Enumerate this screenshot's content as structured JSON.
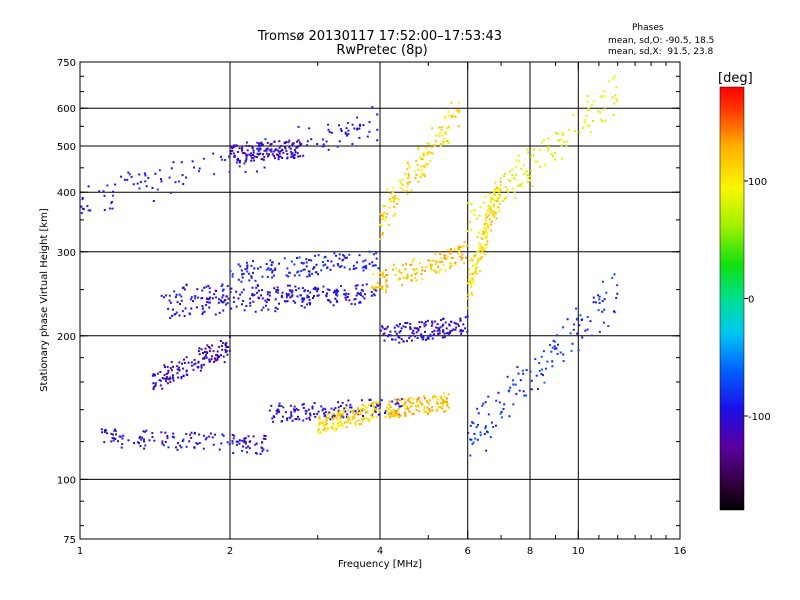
{
  "chart_data": {
    "type": "scatter",
    "title": "Tromsø 20130117 17:52:00–17:53:43",
    "subtitle": "RwPretec (8p)",
    "phases_header": "Phases",
    "phases_line_o": "mean, sd,O: -90.5, 18.5",
    "phases_line_x": "mean, sd,X:  91.5, 23.8",
    "xlabel": "Frequency [MHz]",
    "ylabel": "Stationary phase Virtual Height [km]",
    "x_scale": "log",
    "y_scale": "log",
    "xlim": [
      1,
      16
    ],
    "ylim": [
      75,
      750
    ],
    "x_ticks": [
      1,
      2,
      4,
      6,
      8,
      10,
      16
    ],
    "x_tick_labels": [
      "1",
      "2",
      "4",
      "6",
      "8",
      "10",
      "16"
    ],
    "x_gridlines": [
      2,
      4,
      6,
      8,
      10
    ],
    "y_ticks": [
      75,
      100,
      200,
      300,
      400,
      500,
      600,
      750
    ],
    "y_tick_labels": [
      "75",
      "100",
      "200",
      "300",
      "400",
      "500",
      "600",
      "750"
    ],
    "y_gridlines": [
      100,
      200,
      300,
      400,
      500,
      600
    ],
    "colorbar": {
      "label": "[deg]",
      "range": [
        -180,
        180
      ],
      "ticks": [
        100,
        0,
        -100
      ],
      "tick_labels": [
        "100",
        "0",
        "-100"
      ]
    },
    "trace_groups": [
      {
        "f": [
          1.45,
          4.0
        ],
        "h": [
          245,
          245
        ],
        "phase": -100
      },
      {
        "f": [
          1.5,
          3.8
        ],
        "h": [
          228,
          245
        ],
        "phase": -100
      },
      {
        "f": [
          3.8,
          6.0
        ],
        "h": [
          255,
          300
        ],
        "phase": 120
      },
      {
        "f": [
          2.0,
          4.0
        ],
        "h": [
          270,
          290
        ],
        "phase": -90
      },
      {
        "f": [
          1.1,
          2.4
        ],
        "h": [
          122,
          118
        ],
        "phase": -100
      },
      {
        "f": [
          2.4,
          4.5
        ],
        "h": [
          137,
          142
        ],
        "phase": -100
      },
      {
        "f": [
          4.1,
          5.5
        ],
        "h": [
          140,
          145
        ],
        "phase": 120
      },
      {
        "f": [
          1.4,
          2.0
        ],
        "h": [
          160,
          190
        ],
        "phase": -110
      },
      {
        "f": [
          2.0,
          2.8
        ],
        "h": [
          480,
          495
        ],
        "phase": -110
      },
      {
        "f": [
          4.0,
          5.8
        ],
        "h": [
          350,
          600
        ],
        "phase": 110
      },
      {
        "f": [
          1.0,
          4.0
        ],
        "h": [
          380,
          560
        ],
        "phase": -95
      },
      {
        "f": [
          3.0,
          4.0
        ],
        "h": [
          130,
          140
        ],
        "phase": 110
      },
      {
        "f": [
          6.0,
          7.0
        ],
        "h": [
          250,
          420
        ],
        "phase": 110
      },
      {
        "f": [
          4.0,
          6.0
        ],
        "h": [
          200,
          210
        ],
        "phase": -105
      },
      {
        "f": [
          6.0,
          12.0
        ],
        "h": [
          120,
          250
        ],
        "phase": -80
      },
      {
        "f": [
          6.0,
          12.0
        ],
        "h": [
          350,
          650
        ],
        "phase": 90
      }
    ]
  }
}
